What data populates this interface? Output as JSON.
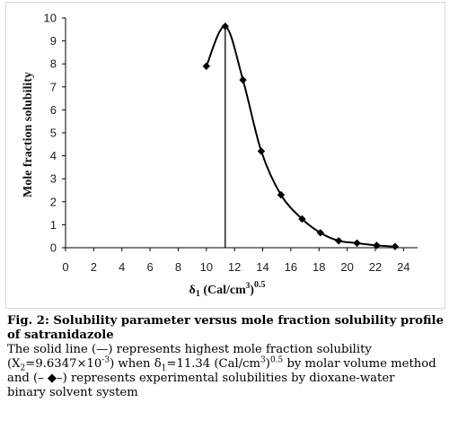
{
  "chart_data": {
    "type": "line",
    "xlabel": "δ",
    "xlabel_sub": "1",
    "xlabel_unit": " (Cal/cm",
    "xlabel_unit_sup": "3",
    "xlabel_unit_close": ")",
    "xlabel_power": "0.5",
    "ylabel": "Mole fraction solubility",
    "xlim": [
      0,
      25
    ],
    "ylim": [
      0,
      10
    ],
    "x_ticks": [
      0,
      2,
      4,
      6,
      8,
      10,
      12,
      14,
      16,
      18,
      20,
      22,
      24
    ],
    "y_ticks": [
      0,
      1,
      2,
      3,
      4,
      5,
      6,
      7,
      8,
      9,
      10
    ],
    "grid": false,
    "series": [
      {
        "marker": "diamond",
        "x": [
          10.0,
          11.34,
          12.6,
          13.9,
          15.3,
          16.8,
          18.1,
          19.4,
          20.7,
          22.1,
          23.4
        ],
        "y": [
          7.9,
          9.6347,
          7.3,
          4.2,
          2.3,
          1.25,
          0.65,
          0.3,
          0.2,
          0.1,
          0.05
        ]
      }
    ],
    "vertical_line": {
      "x": 11.34,
      "y": 9.6347
    }
  },
  "caption": {
    "fig_label": "Fig. 2: Solubility parameter versus mole fraction solubility profile",
    "fig_label_cont": "of satranidazole",
    "l1": "The solid line (—) represents highest mole fraction solubility",
    "l2_a": "(X",
    "l2_sub1": "2",
    "l2_b": "=9.6347×10",
    "l2_sup1": "-3",
    "l2_c": ") when δ",
    "l2_sub2": "1",
    "l2_d": "=11.34 (Cal/cm",
    "l2_sup2": "3",
    "l2_e": ")",
    "l2_sup3": "0.5",
    "l2_f": " by molar volume method",
    "l3": "and (– ◆–) represents experimental solubilities by dioxane-water",
    "l4": "binary solvent system"
  }
}
